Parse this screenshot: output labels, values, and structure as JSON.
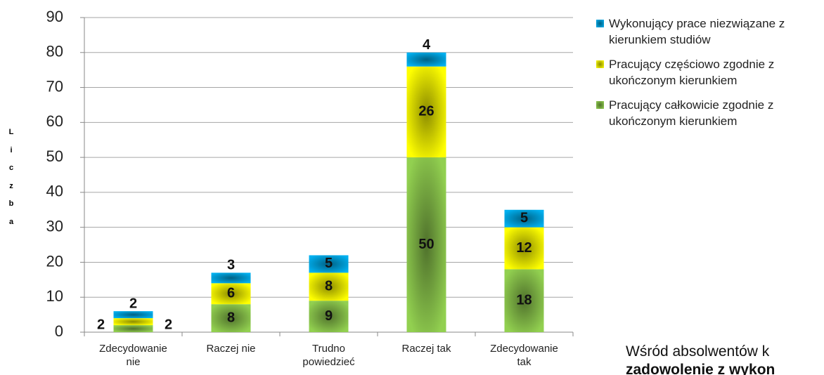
{
  "chart_data": {
    "type": "stacked_bar",
    "y_label": "Liczba",
    "categories": [
      "Zdecydowanie nie",
      "Raczej nie",
      "Trudno powiedzieć",
      "Raczej tak",
      "Zdecydowanie tak"
    ],
    "series": [
      {
        "name": "Pracujący całkowicie zgodnie z ukończonym kierunkiem",
        "color": "#92d050",
        "values": [
          2,
          8,
          9,
          50,
          18
        ]
      },
      {
        "name": "Pracujący częściowo zgodnie z ukończonym kierunkiem",
        "color": "#ffff00",
        "values": [
          2,
          6,
          8,
          26,
          12
        ]
      },
      {
        "name": "Wykonujący prace niezwiązane z kierunkiem studiów",
        "color": "#00b0f0",
        "values": [
          2,
          3,
          5,
          4,
          5
        ]
      }
    ],
    "ylim": [
      0,
      90
    ],
    "yticks": [
      0,
      10,
      20,
      30,
      40,
      50,
      60,
      70,
      80,
      90
    ],
    "grid": true,
    "legend": "right",
    "annotation": [
      "Wśród absolwentów k",
      "zadowolenie z wykon"
    ]
  }
}
